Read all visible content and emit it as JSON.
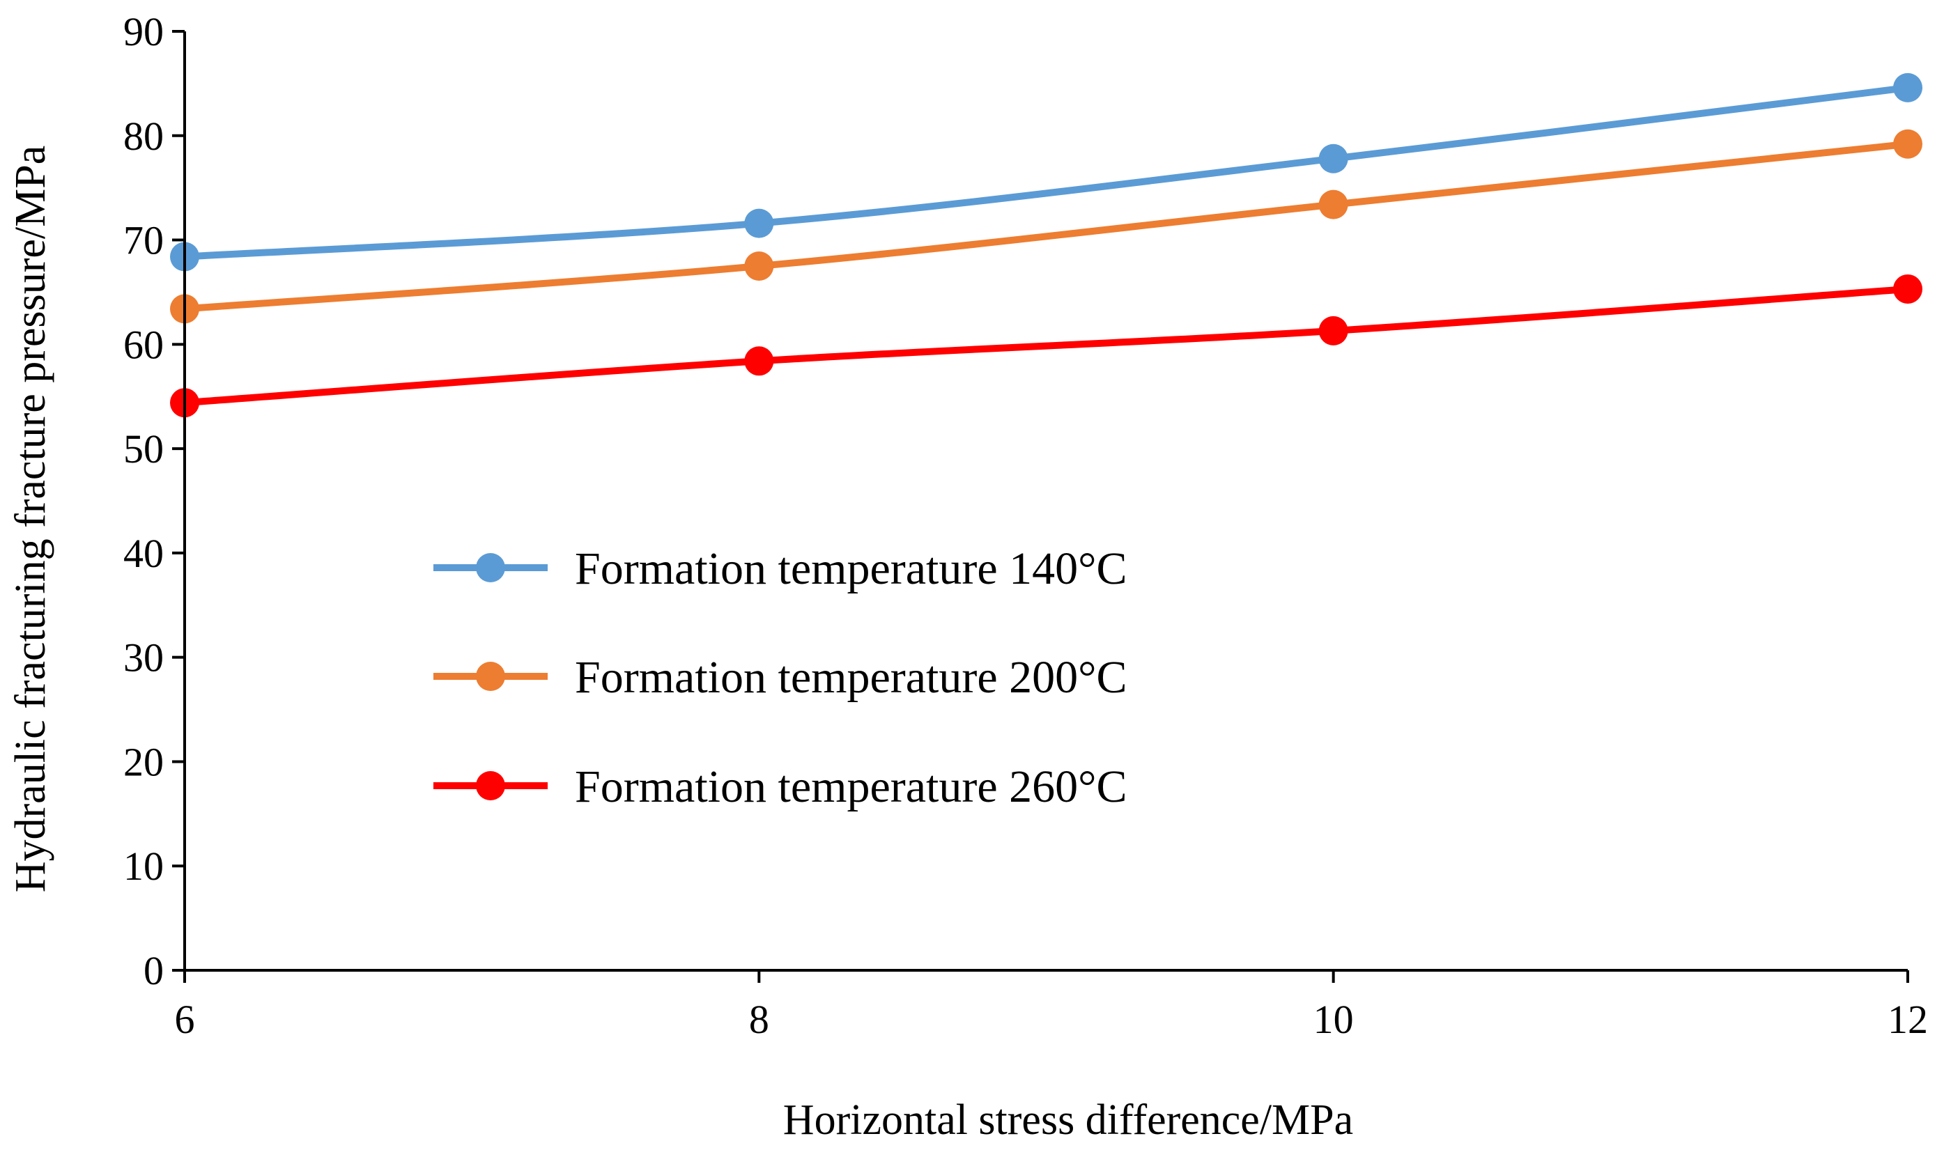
{
  "chart_data": {
    "type": "line",
    "xlabel": "Horizontal stress difference/MPa",
    "ylabel": "Hydraulic fracturing fracture pressure/MPa",
    "xlim": [
      6,
      12
    ],
    "ylim": [
      0,
      90
    ],
    "xticks": [
      "6",
      "8",
      "10",
      "12"
    ],
    "yticks": [
      "0",
      "10",
      "20",
      "30",
      "40",
      "50",
      "60",
      "70",
      "80",
      "90"
    ],
    "grid": false,
    "smooth": true,
    "legend_position": "center-left",
    "x": [
      6,
      8,
      10,
      12
    ],
    "series": [
      {
        "name": "Formation temperature 140°C",
        "color": "#5b9bd5",
        "values": [
          68.4,
          71.6,
          77.8,
          84.6
        ]
      },
      {
        "name": "Formation temperature 200°C",
        "color": "#ed7d31",
        "values": [
          63.4,
          67.5,
          73.4,
          79.2
        ]
      },
      {
        "name": "Formation temperature 260°C",
        "color": "#ff0000",
        "values": [
          54.4,
          58.4,
          61.3,
          65.3
        ]
      }
    ]
  }
}
